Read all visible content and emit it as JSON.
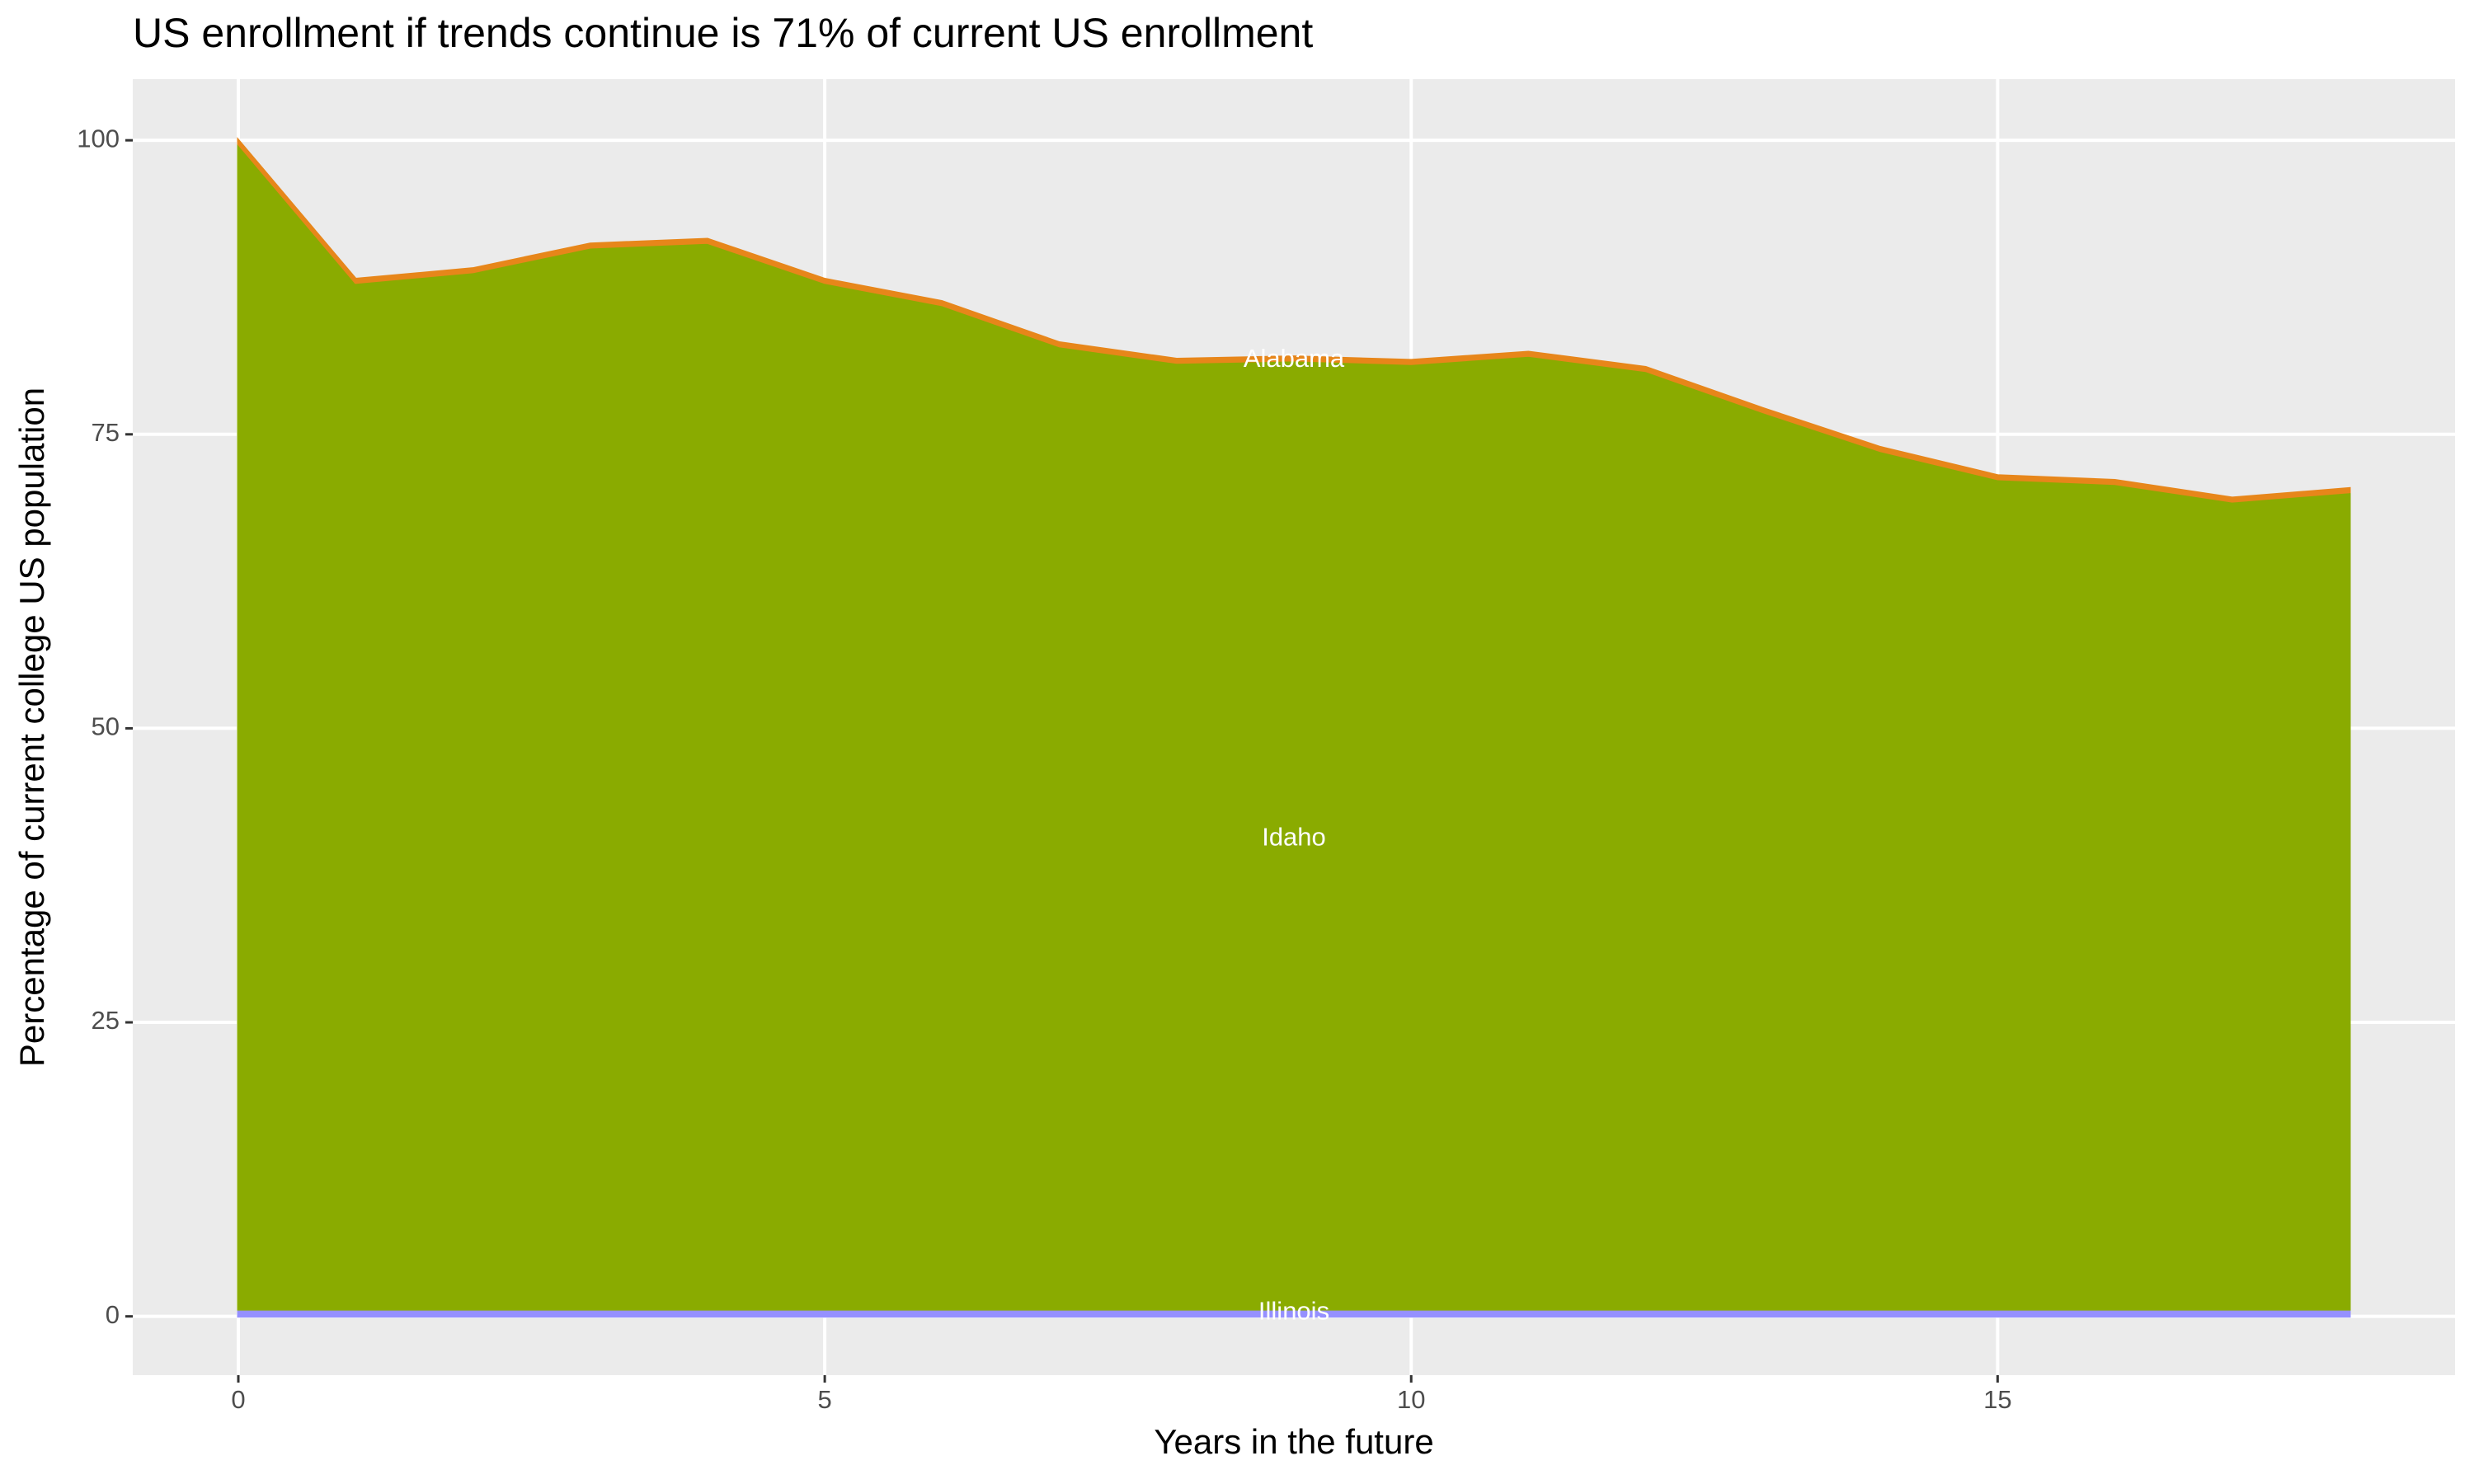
{
  "chart_data": {
    "type": "stacked-area",
    "title": "US enrollment if trends continue is 71% of current US enrollment",
    "x_label": "Years in the future",
    "y_label": "Percentage of current college US population",
    "x": [
      0,
      1,
      2,
      3,
      4,
      5,
      6,
      7,
      8,
      9,
      10,
      11,
      12,
      13,
      14,
      15,
      16,
      17,
      18
    ],
    "series": [
      {
        "name": "Illinois",
        "color": "#9590FF",
        "values": [
          0.6,
          0.6,
          0.6,
          0.6,
          0.6,
          0.6,
          0.6,
          0.6,
          0.6,
          0.6,
          0.6,
          0.6,
          0.6,
          0.6,
          0.6,
          0.6,
          0.6,
          0.6,
          0.6
        ]
      },
      {
        "name": "Idaho",
        "color": "#8AAB00",
        "values": [
          99.1,
          87.3,
          88.2,
          90.3,
          90.7,
          87.3,
          85.4,
          81.9,
          80.5,
          80.7,
          80.4,
          81.1,
          79.8,
          76.3,
          73.0,
          70.6,
          70.2,
          68.7,
          69.5
        ]
      },
      {
        "name": "Alabama",
        "color": "#E7861A",
        "values": [
          0.3,
          0.3,
          0.3,
          0.3,
          0.3,
          0.3,
          0.3,
          0.3,
          0.3,
          0.3,
          0.3,
          0.3,
          0.3,
          0.3,
          0.3,
          0.3,
          0.3,
          0.3,
          0.3
        ]
      }
    ],
    "annotations": [
      {
        "text": "Alabama",
        "x": 9,
        "y": 81.3
      },
      {
        "text": "Idaho",
        "x": 9,
        "y": 40.6
      },
      {
        "text": "Illinois",
        "x": 9,
        "y": 0.3
      }
    ],
    "xlim": [
      -0.9,
      18.9
    ],
    "xticks": [
      0,
      5,
      10,
      15
    ],
    "ylim": [
      -5,
      105.2
    ],
    "yticks": [
      0,
      25,
      50,
      75,
      100
    ],
    "grid": true
  }
}
